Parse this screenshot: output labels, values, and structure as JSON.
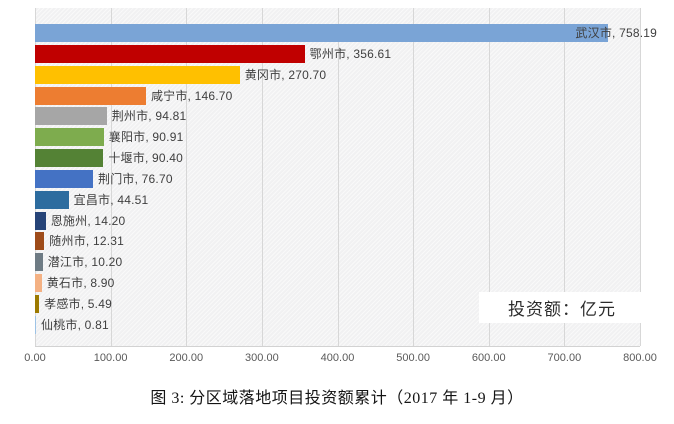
{
  "chart_data": {
    "type": "bar",
    "orientation": "horizontal",
    "categories": [
      "武汉市",
      "鄂州市",
      "黄冈市",
      "咸宁市",
      "荆州市",
      "襄阳市",
      "十堰市",
      "荆门市",
      "宜昌市",
      "恩施州",
      "随州市",
      "潜江市",
      "黄石市",
      "孝感市",
      "仙桃市"
    ],
    "values": [
      758.19,
      356.61,
      270.7,
      146.7,
      94.81,
      90.91,
      90.4,
      76.7,
      44.51,
      14.2,
      12.31,
      10.2,
      8.9,
      5.49,
      0.81
    ],
    "bar_colors": [
      "#7AA4D6",
      "#C00000",
      "#FFC000",
      "#ED7D31",
      "#A6A6A6",
      "#7EAC4E",
      "#548235",
      "#4472C4",
      "#2D6C9F",
      "#264478",
      "#9E4B19",
      "#6E7B84",
      "#F4B183",
      "#9C7A00",
      "#9DC3E6"
    ],
    "x_ticks": [
      "0.00",
      "100.00",
      "200.00",
      "300.00",
      "400.00",
      "500.00",
      "600.00",
      "700.00",
      "800.00"
    ],
    "xlim": [
      0,
      800
    ],
    "grid": true,
    "legend_position": "none",
    "unit_label": "投资额：亿元",
    "label_format": "category, value",
    "plot_background": "#f1f1f2",
    "gridline_color": "#d7d7d7",
    "label_color": "#3f3f3f"
  },
  "caption": "图 3: 分区域落地项目投资额累计（2017 年 1-9 月）"
}
